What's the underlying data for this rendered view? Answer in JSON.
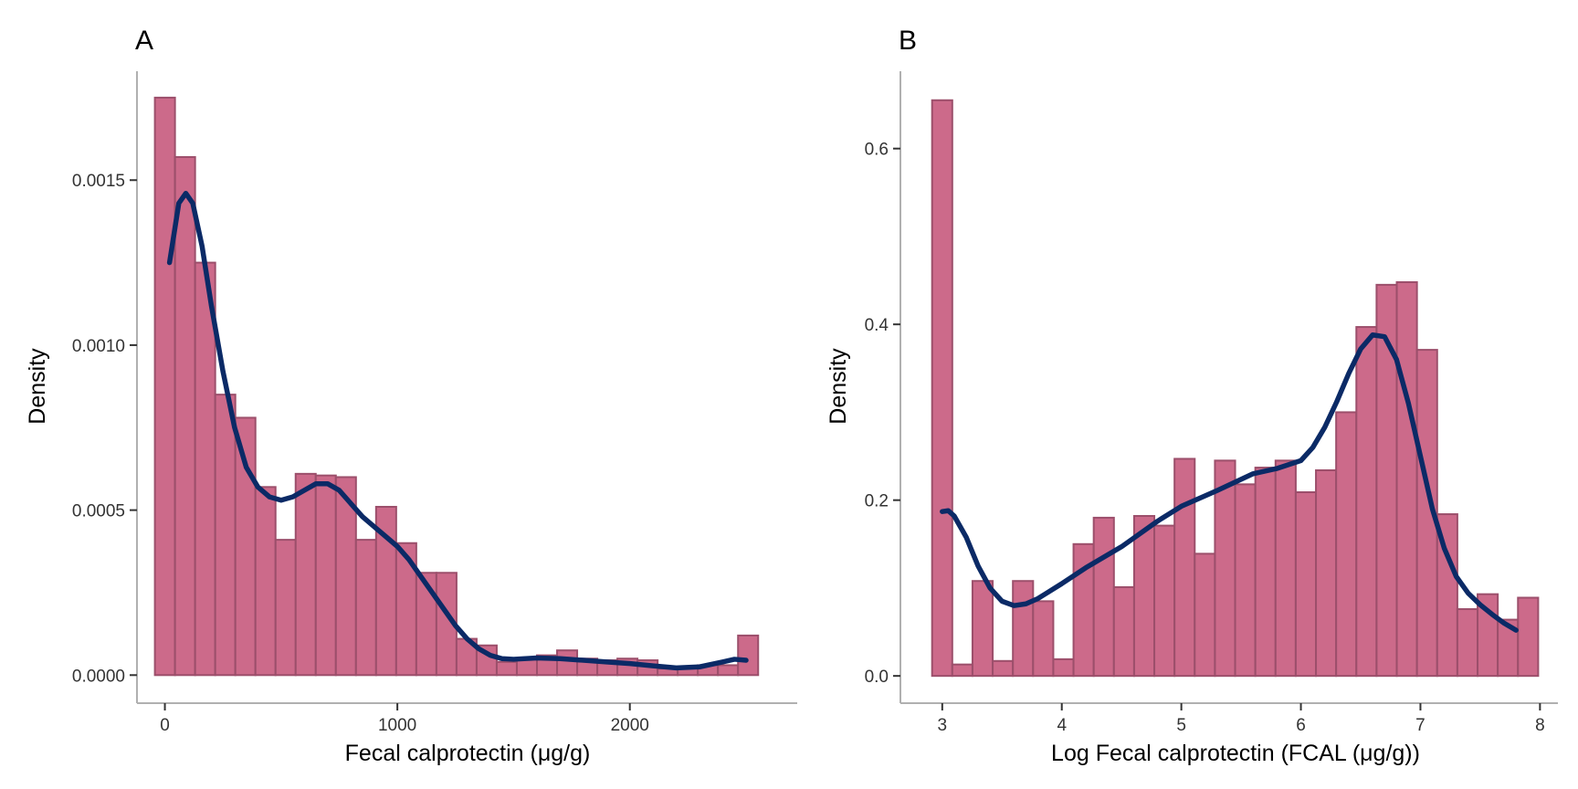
{
  "colors": {
    "bar_fill": "#CC6A8A",
    "bar_stroke": "#9C4F6B",
    "density_line": "#0B2A66",
    "axis": "#B0B0B0",
    "tick_text": "#333333"
  },
  "chart_data": [
    {
      "type": "bar",
      "panel_label": "A",
      "title": "",
      "xlabel": "Fecal calprotectin (μg/g)",
      "ylabel": "Density",
      "xlim": [
        -120,
        2720
      ],
      "ylim": [
        -8.5e-05,
        0.00183
      ],
      "xticks": [
        0,
        1000,
        2000
      ],
      "xtick_labels": [
        "0",
        "1000",
        "2000"
      ],
      "yticks": [
        0,
        0.0005,
        0.001,
        0.0015
      ],
      "ytick_labels": [
        "0.0000",
        "0.0005",
        "0.0010",
        "0.0015"
      ],
      "bin_start": -43,
      "bin_width": 86.5,
      "values": [
        0.00175,
        0.00157,
        0.00125,
        0.00085,
        0.00078,
        0.00057,
        0.00041,
        0.00061,
        0.000605,
        0.0006,
        0.00041,
        0.00051,
        0.0004,
        0.00031,
        0.00031,
        0.00011,
        9e-05,
        4e-05,
        5e-05,
        6e-05,
        7.5e-05,
        5e-05,
        4.5e-05,
        5e-05,
        4.5e-05,
        2e-05,
        2.5e-05,
        3e-05,
        3e-05,
        0.00012
      ],
      "density_x": [
        20,
        60,
        90,
        120,
        160,
        200,
        250,
        300,
        350,
        400,
        450,
        500,
        550,
        600,
        650,
        700,
        750,
        800,
        850,
        900,
        950,
        1000,
        1050,
        1100,
        1150,
        1200,
        1250,
        1300,
        1350,
        1400,
        1450,
        1500,
        1600,
        1700,
        1800,
        1900,
        2000,
        2100,
        2200,
        2300,
        2400,
        2450,
        2500
      ],
      "density_y": [
        0.00125,
        0.00143,
        0.00146,
        0.00143,
        0.0013,
        0.00112,
        0.00092,
        0.00075,
        0.00063,
        0.00057,
        0.00054,
        0.00053,
        0.00054,
        0.00056,
        0.00058,
        0.00058,
        0.00056,
        0.00052,
        0.00048,
        0.00045,
        0.00042,
        0.00039,
        0.00035,
        0.0003,
        0.00025,
        0.0002,
        0.00015,
        0.00011,
        8e-05,
        6e-05,
        5e-05,
        4.8e-05,
        5.2e-05,
        5e-05,
        4.5e-05,
        4e-05,
        3.5e-05,
        2.8e-05,
        2.2e-05,
        2.5e-05,
        4e-05,
        4.8e-05,
        4.5e-05
      ]
    },
    {
      "type": "bar",
      "panel_label": "B",
      "title": "",
      "xlabel": "Log Fecal calprotectin (FCAL (μg/g))",
      "ylabel": "Density",
      "xlim": [
        2.65,
        8.15
      ],
      "ylim": [
        -0.031,
        0.688
      ],
      "xticks": [
        3,
        4,
        5,
        6,
        7,
        8
      ],
      "xtick_labels": [
        "3",
        "4",
        "5",
        "6",
        "7",
        "8"
      ],
      "yticks": [
        0,
        0.2,
        0.4,
        0.6
      ],
      "ytick_labels": [
        "0.0",
        "0.2",
        "0.4",
        "0.6"
      ],
      "bin_start": 2.915,
      "bin_width": 0.169,
      "values": [
        0.655,
        0.013,
        0.108,
        0.017,
        0.108,
        0.085,
        0.019,
        0.15,
        0.18,
        0.101,
        0.182,
        0.171,
        0.247,
        0.139,
        0.245,
        0.218,
        0.237,
        0.245,
        0.209,
        0.234,
        0.3,
        0.397,
        0.445,
        0.448,
        0.371,
        0.184,
        0.076,
        0.093,
        0.064,
        0.089
      ],
      "density_x": [
        3.0,
        3.05,
        3.1,
        3.2,
        3.3,
        3.4,
        3.5,
        3.6,
        3.7,
        3.8,
        4.0,
        4.2,
        4.5,
        4.8,
        5.0,
        5.3,
        5.6,
        5.8,
        6.0,
        6.1,
        6.2,
        6.3,
        6.4,
        6.5,
        6.6,
        6.7,
        6.8,
        6.9,
        7.0,
        7.1,
        7.2,
        7.3,
        7.4,
        7.5,
        7.6,
        7.7,
        7.8
      ],
      "density_y": [
        0.187,
        0.188,
        0.182,
        0.158,
        0.125,
        0.1,
        0.085,
        0.08,
        0.082,
        0.088,
        0.105,
        0.123,
        0.147,
        0.176,
        0.193,
        0.211,
        0.23,
        0.236,
        0.245,
        0.26,
        0.283,
        0.312,
        0.344,
        0.372,
        0.388,
        0.386,
        0.36,
        0.31,
        0.25,
        0.19,
        0.145,
        0.113,
        0.094,
        0.081,
        0.07,
        0.06,
        0.052
      ]
    }
  ]
}
